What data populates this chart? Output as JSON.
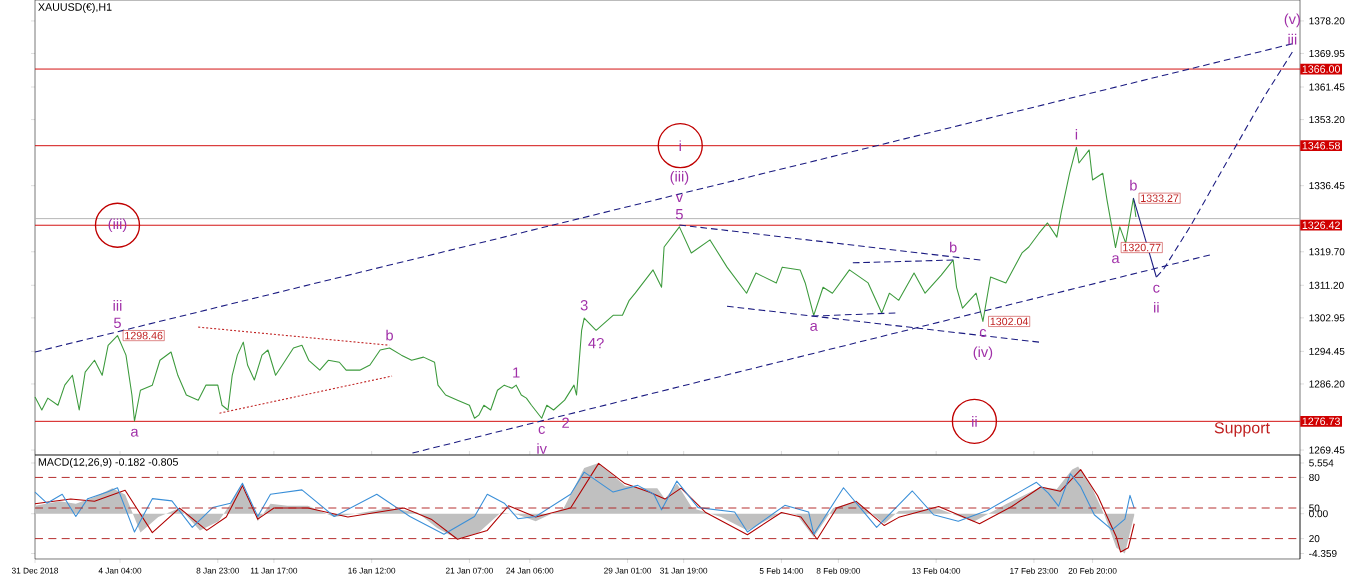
{
  "chart_data": [
    {
      "type": "line",
      "title": "XAUUSD(€),H1",
      "xlim": [
        "2018-12-31T00:00",
        "2019-03-03T00:00"
      ],
      "ylim": [
        1268.2,
        1383.5
      ],
      "tick_labels": "y",
      "yticks": [
        {
          "value": 1378.2,
          "label": "1378.20"
        },
        1369.95,
        1361.45,
        {
          "value": 1353.2,
          "label": "1353.20"
        },
        1336.45,
        {
          "value": 1319.7,
          "label": "1319.70"
        },
        {
          "value": 1311.2,
          "label": "1311.20"
        },
        1302.95,
        1294.45,
        {
          "value": 1286.2,
          "label": "1286.20"
        },
        1269.45
      ],
      "series": [
        {
          "color": "#3c9a3c",
          "x": [
            "2018-12-31T00:00",
            "2018-12-31T08:00",
            "2018-12-31T15:00",
            "2019-01-01T03:00",
            "2019-01-01T11:00",
            "2019-01-01T20:00",
            "2019-01-02T04:00",
            "2019-01-02T11:00",
            "2019-01-02T22:00",
            "2019-01-03T07:00",
            "2019-01-03T14:00",
            "2019-01-04T01:00",
            "2019-01-04T11:00",
            "2019-01-04T18:00",
            "2019-01-04T21:00",
            "2019-01-05T04:00",
            "2019-01-05T18:00",
            "2019-01-06T03:00",
            "2019-01-06T16:00",
            "2019-01-07T00:00",
            "2019-01-07T10:00",
            "2019-01-08T00:00",
            "2019-01-08T09:00",
            "2019-01-08T23:00",
            "2019-01-09T04:00",
            "2019-01-09T11:00",
            "2019-01-09T16:00",
            "2019-01-09T22:00",
            "2019-01-10T05:00",
            "2019-01-10T10:00",
            "2019-01-10T18:00",
            "2019-01-11T03:00",
            "2019-01-11T10:00",
            "2019-01-11T19:00",
            "2019-01-12T03:00",
            "2019-01-12T16:00",
            "2019-01-13T02:00",
            "2019-01-13T10:00",
            "2019-01-13T23:00",
            "2019-01-14T09:00",
            "2019-01-14T22:00",
            "2019-01-15T06:00",
            "2019-01-15T22:00",
            "2019-01-16T10:00",
            "2019-01-16T22:00",
            "2019-01-17T09:00",
            "2019-01-17T23:00",
            "2019-01-18T11:00",
            "2019-01-19T01:00",
            "2019-01-19T14:00",
            "2019-01-19T18:00",
            "2019-01-20T03:00",
            "2019-01-20T17:00",
            "2019-01-21T07:00",
            "2019-01-21T13:00",
            "2019-01-21T18:00",
            "2019-01-22T00:00",
            "2019-01-22T08:00",
            "2019-01-22T16:00",
            "2019-01-23T00:00",
            "2019-01-23T09:00",
            "2019-01-23T14:00",
            "2019-01-23T20:00",
            "2019-01-24T02:00",
            "2019-01-24T08:00",
            "2019-01-24T20:00",
            "2019-01-25T02:00",
            "2019-01-25T10:00",
            "2019-01-25T23:00",
            "2019-01-26T10:00",
            "2019-01-26T13:00",
            "2019-01-26T19:00",
            "2019-01-26T22:00",
            "2019-01-27T12:00",
            "2019-01-27T19:00",
            "2019-01-28T08:00",
            "2019-01-28T19:00",
            "2019-01-29T03:00",
            "2019-01-29T10:00",
            "2019-01-30T07:00",
            "2019-01-30T17:00",
            "2019-01-30T20:00",
            "2019-01-31T14:00",
            "2019-02-01T04:00",
            "2019-02-02T02:00",
            "2019-02-02T22:00",
            "2019-02-03T21:00",
            "2019-02-04T08:00",
            "2019-02-05T08:00",
            "2019-02-05T15:00",
            "2019-02-06T12:00",
            "2019-02-06T18:00",
            "2019-02-07T04:00",
            "2019-02-07T15:00",
            "2019-02-08T02:00",
            "2019-02-08T22:00",
            "2019-02-09T20:00",
            "2019-02-10T12:00",
            "2019-02-10T21:00",
            "2019-02-11T08:00",
            "2019-02-12T02:00",
            "2019-02-12T15:00",
            "2019-02-13T10:00",
            "2019-02-14T00:00",
            "2019-02-14T04:00",
            "2019-02-14T11:00",
            "2019-02-15T03:00",
            "2019-02-15T11:00",
            "2019-02-15T20:00",
            "2019-02-16T14:00",
            "2019-02-17T09:00",
            "2019-02-17T17:00",
            "2019-02-18T05:00",
            "2019-02-18T15:00",
            "2019-02-19T02:00",
            "2019-02-19T07:00",
            "2019-02-19T17:00",
            "2019-02-20T01:00",
            "2019-02-20T04:00",
            "2019-02-20T16:00",
            "2019-02-20T20:00",
            "2019-02-21T08:00",
            "2019-02-21T13:00",
            "2019-02-21T23:00",
            "2019-02-22T04:00",
            "2019-02-22T11:00",
            "2019-02-22T20:00",
            "2019-02-22T23:00"
          ],
          "values": [
            1282.9,
            1279.6,
            1282.6,
            1280.8,
            1285.9,
            1288.4,
            1279.6,
            1289.2,
            1292.2,
            1288.4,
            1296.0,
            1298.46,
            1293.5,
            1283.4,
            1276.8,
            1284.6,
            1285.9,
            1292.2,
            1294.3,
            1288.4,
            1283.4,
            1282.1,
            1285.9,
            1285.9,
            1280.8,
            1279.6,
            1288.4,
            1293.5,
            1296.8,
            1291.0,
            1287.2,
            1293.5,
            1294.8,
            1288.4,
            1291.0,
            1295.3,
            1296.0,
            1292.2,
            1289.7,
            1292.2,
            1291.7,
            1289.7,
            1289.7,
            1291.0,
            1294.8,
            1295.3,
            1293.5,
            1292.2,
            1293.0,
            1291.7,
            1285.9,
            1283.4,
            1282.1,
            1280.8,
            1277.5,
            1278.3,
            1280.8,
            1279.6,
            1284.6,
            1285.9,
            1285.1,
            1285.9,
            1283.4,
            1282.6,
            1280.8,
            1277.5,
            1280.8,
            1279.6,
            1282.1,
            1285.9,
            1283.4,
            1299.8,
            1302.9,
            1299.8,
            1301.1,
            1303.6,
            1303.6,
            1307.4,
            1309.2,
            1315.1,
            1310.7,
            1320.9,
            1326.0,
            1319.4,
            1322.7,
            1315.8,
            1309.2,
            1314.3,
            1311.8,
            1315.8,
            1315.1,
            1311.8,
            1303.6,
            1310.7,
            1309.2,
            1315.1,
            1311.8,
            1304.2,
            1309.2,
            1307.4,
            1314.3,
            1309.2,
            1313.8,
            1317.6,
            1310.7,
            1305.4,
            1309.2,
            1302.04,
            1313.3,
            1311.8,
            1319.4,
            1320.9,
            1324.4,
            1327.0,
            1323.4,
            1329.5,
            1339.6,
            1346.2,
            1342.2,
            1345.5,
            1337.9,
            1339.6,
            1332.8,
            1320.77,
            1326.0,
            1321.9,
            1333.27,
            1328.5
          ],
          "value_labels": [
            null,
            null,
            null,
            null,
            null,
            null,
            null,
            null,
            null,
            null,
            null,
            "1298.46",
            null,
            null,
            null,
            null,
            null,
            null,
            null,
            null,
            null,
            null,
            null,
            null,
            null,
            null,
            null,
            null,
            null,
            null,
            null,
            null,
            null,
            null,
            null,
            null,
            null,
            null,
            null,
            null,
            null,
            null,
            null,
            null,
            null,
            null,
            null,
            null,
            null,
            null,
            null,
            null,
            null,
            null,
            null,
            null,
            null,
            null,
            null,
            null,
            null,
            null,
            null,
            null,
            null,
            null,
            null,
            null,
            null,
            null,
            null,
            null,
            null,
            null,
            null,
            null,
            null,
            null,
            null,
            null,
            null,
            null,
            null,
            null,
            null,
            null,
            null,
            null,
            null,
            null,
            null,
            null,
            null,
            null,
            null,
            null,
            null,
            null,
            null,
            null,
            null,
            null,
            null,
            null,
            null,
            null,
            null,
            "1302.04",
            null,
            null,
            null,
            null,
            null,
            null,
            null,
            null,
            null,
            null,
            null,
            null,
            null,
            null,
            null,
            "1320.77",
            null,
            null,
            "1333.27",
            null
          ]
        },
        {
          "color": "#1a1a80",
          "line_style": "dashed",
          "x": [
            "2018-12-31T00:00",
            "2019-03-02T15:00"
          ],
          "values": [
            1294.3,
            1372.4
          ]
        },
        {
          "color": "#1a1a80",
          "line_style": "dashed",
          "x": [
            "2019-01-18T12:00",
            "2019-02-26T14:00"
          ],
          "values": [
            1268.7,
            1318.9
          ]
        },
        {
          "color": "#c02020",
          "line_style": "dotted",
          "x": [
            "2019-01-08T00:00",
            "2019-01-17T09:00"
          ],
          "values": [
            1300.6,
            1296.0
          ]
        },
        {
          "color": "#c02020",
          "line_style": "dotted",
          "x": [
            "2019-01-09T01:00",
            "2019-01-17T12:00"
          ],
          "values": [
            1278.8,
            1288.2
          ]
        },
        {
          "color": "#1a1a80",
          "line_style": "dashed",
          "x": [
            "2019-01-31T14:00",
            "2019-02-15T08:00"
          ],
          "values": [
            1326.5,
            1317.6
          ]
        },
        {
          "color": "#1a1a80",
          "line_style": "dashed",
          "x": [
            "2019-02-02T22:00",
            "2019-02-18T05:00"
          ],
          "values": [
            1305.9,
            1296.8
          ]
        },
        {
          "color": "#1a1a80",
          "line_style": "dashed",
          "x": [
            "2019-02-09T02:00",
            "2019-02-14T00:00"
          ],
          "values": [
            1316.9,
            1317.6
          ]
        },
        {
          "color": "#1a1a80",
          "line_style": "dashed",
          "x": [
            "2019-02-07T02:00",
            "2019-02-11T04:00"
          ],
          "values": [
            1303.4,
            1304.2
          ]
        },
        {
          "color": "#1a1a80",
          "x": [
            "2019-02-22T20:00",
            "2019-02-23T23:00"
          ],
          "values": [
            1333.27,
            1313.3
          ]
        },
        {
          "color": "#1a1a80",
          "line_style": "dashed",
          "x": [
            "2019-02-23T23:00",
            "2019-02-24T07:00",
            "2019-02-25T16:00",
            "2019-02-27T11:00",
            "2019-03-01T07:00",
            "2019-03-02T15:00"
          ],
          "values": [
            1313.3,
            1315.1,
            1326.5,
            1342.9,
            1359.4,
            1370.3
          ]
        }
      ],
      "ref_lines": [
        {
          "axis": "y",
          "value": 1366.0,
          "label": "1366.00",
          "color": "#d00000"
        },
        {
          "axis": "y",
          "value": 1346.58,
          "label": "1346.58",
          "color": "#d00000"
        },
        {
          "axis": "y",
          "value": 1328.1,
          "color": "#b0b0b0"
        },
        {
          "axis": "y",
          "value": 1326.42,
          "label": "1326.42",
          "color": "#d00000"
        },
        {
          "axis": "y",
          "value": 1276.73,
          "label": "1276.73",
          "color": "#d00000"
        }
      ],
      "annotations": [
        {
          "text": "(iii)",
          "x": "2019-01-04T01:00",
          "y": 1326.42
        },
        {
          "text": "5",
          "x": "2019-01-04T01:00",
          "y": 1298.46
        },
        {
          "text": "iii",
          "x": "2019-01-04T01:00",
          "y": 1298.46
        },
        {
          "text": "a",
          "x": "2019-01-04T21:00",
          "y": 1276.8
        },
        {
          "text": "b",
          "x": "2019-01-17T09:00",
          "y": 1295.3
        },
        {
          "text": "1",
          "x": "2019-01-23T14:00",
          "y": 1285.9
        },
        {
          "text": "c",
          "x": "2019-01-24T20:00",
          "y": 1277.5
        },
        {
          "text": "iv",
          "x": "2019-01-24T20:00",
          "y": 1277.5
        },
        {
          "text": "2",
          "x": "2019-01-25T10:00",
          "y": 1279.6
        },
        {
          "text": "3",
          "x": "2019-01-26T22:00",
          "y": 1302.9
        },
        {
          "text": "4?",
          "x": "2019-01-27T12:00",
          "y": 1299.8
        },
        {
          "text": "i",
          "x": "2019-01-31T15:00",
          "y": 1346.58
        },
        {
          "text": "5",
          "x": "2019-01-31T14:00",
          "y": 1326.0
        },
        {
          "text": "v",
          "x": "2019-01-31T14:00",
          "y": 1326.0
        },
        {
          "text": "(iii)",
          "x": "2019-01-31T14:00",
          "y": 1326.0
        },
        {
          "text": "a",
          "x": "2019-02-07T04:00",
          "y": 1303.6
        },
        {
          "text": "b",
          "x": "2019-02-14T00:00",
          "y": 1317.6
        },
        {
          "text": "c",
          "x": "2019-02-15T11:00",
          "y": 1302.04
        },
        {
          "text": "(iv)",
          "x": "2019-02-15T11:00",
          "y": 1302.04
        },
        {
          "text": "ii",
          "x": "2019-02-15T01:00",
          "y": 1276.73
        },
        {
          "text": "i",
          "x": "2019-02-20T01:00",
          "y": 1346.2
        },
        {
          "text": "a",
          "x": "2019-02-21T23:00",
          "y": 1320.77
        },
        {
          "text": "b",
          "x": "2019-02-22T20:00",
          "y": 1333.27
        },
        {
          "text": "c",
          "x": "2019-02-23T23:00",
          "y": 1313.3
        },
        {
          "text": "ii",
          "x": "2019-02-23T23:00",
          "y": 1313.3
        },
        {
          "text": "iii",
          "x": "2019-03-02T15:00",
          "y": 1370.3
        },
        {
          "text": "(v)",
          "x": "2019-03-02T15:00",
          "y": 1370.3
        },
        "Support"
      ]
    },
    {
      "type": "line",
      "title": "MACD(12,26,9) -0.182 -0.805",
      "xlim": [
        "2018-12-31T00:00",
        "2019-03-03T00:00"
      ],
      "ylim": [
        -4.96,
        6.43
      ],
      "y2lim": [
        0,
        102
      ],
      "xticks": [
        {
          "value": "2018-12-31T00:00",
          "label": "31 Dec 2018"
        },
        {
          "value": "2019-01-04T04:00",
          "label": "4 Jan 04:00"
        },
        {
          "value": "2019-01-08T23:00",
          "label": "8 Jan 23:00"
        },
        {
          "value": "2019-01-11T17:00",
          "label": "11 Jan 17:00"
        },
        {
          "value": "2019-01-16T12:00",
          "label": "16 Jan 12:00"
        },
        {
          "value": "2019-01-21T07:00",
          "label": "21 Jan 07:00"
        },
        {
          "value": "2019-01-24T06:00",
          "label": "24 Jan 06:00"
        },
        {
          "value": "2019-01-29T01:00",
          "label": "29 Jan 01:00"
        },
        {
          "value": "2019-01-31T19:00",
          "label": "31 Jan 19:00"
        },
        {
          "value": "2019-02-05T14:00",
          "label": "5 Feb 14:00"
        },
        {
          "value": "2019-02-08T09:00",
          "label": "8 Feb 09:00"
        },
        {
          "value": "2019-02-13T04:00",
          "label": "13 Feb 04:00"
        },
        {
          "value": "2019-02-17T23:00",
          "label": "17 Feb 23:00"
        },
        {
          "value": "2019-02-20T20:00",
          "label": "20 Feb 20:00"
        }
      ],
      "yticks": [
        5.554,
        {
          "value": 0,
          "label": "0.00"
        },
        -4.359
      ],
      "y2ticks": [
        80,
        50,
        20
      ],
      "series": [
        {
          "type": "area",
          "color": "#c0c0c0",
          "x": [
            "2018-12-31T00:00",
            "2019-01-01T05:00",
            "2019-01-02T00:00",
            "2019-01-02T22:00",
            "2019-01-03T19:00",
            "2019-01-04T10:00",
            "2019-01-05T04:00",
            "2019-01-06T01:00",
            "2019-01-07T02:00",
            "2019-01-08T02:00",
            "2019-01-09T00:00",
            "2019-01-09T14:00",
            "2019-01-10T02:00",
            "2019-01-10T13:00",
            "2019-01-10T22:00",
            "2019-01-11T13:00",
            "2019-01-12T09:00",
            "2019-01-13T09:00",
            "2019-01-14T16:00",
            "2019-01-16T02:00",
            "2019-01-17T09:00",
            "2019-01-18T18:00",
            "2019-01-19T17:00",
            "2019-01-20T17:00",
            "2019-01-21T18:00",
            "2019-01-22T20:00",
            "2019-01-23T16:00",
            "2019-01-24T13:00",
            "2019-01-25T22:00",
            "2019-01-26T22:00",
            "2019-01-27T15:00",
            "2019-01-28T22:00",
            "2019-01-29T23:00",
            "2019-01-30T12:00",
            "2019-01-30T21:00",
            "2019-01-31T11:00",
            "2019-02-01T05:00",
            "2019-02-02T15:00",
            "2019-02-03T22:00",
            "2019-02-05T14:00",
            "2019-02-06T08:00",
            "2019-02-07T04:00",
            "2019-02-08T03:00",
            "2019-02-09T06:00",
            "2019-02-10T15:00",
            "2019-02-11T08:00",
            "2019-02-13T07:00",
            "2019-02-15T00:00",
            "2019-02-16T14:00",
            "2019-02-18T07:00",
            "2019-02-19T02:00",
            "2019-02-19T20:00",
            "2019-02-20T03:00",
            "2019-02-20T20:00",
            "2019-02-21T10:00",
            "2019-02-22T00:00",
            "2019-02-22T10:00",
            "2019-02-22T21:00"
          ],
          "values": [
            0.87,
            1.36,
            1.1,
            1.84,
            2.8,
            2.1,
            -2.07,
            -0.36,
            0.62,
            -1.83,
            -0.84,
            1.1,
            3.07,
            1.6,
            -0.84,
            1.1,
            0.87,
            0.87,
            -0.36,
            0.13,
            0.62,
            0.13,
            -1.57,
            -2.8,
            -2.07,
            0.13,
            -0.11,
            -0.84,
            0.62,
            5.0,
            5.554,
            3.07,
            2.8,
            2.8,
            1.6,
            3.3,
            0.62,
            -0.36,
            -1.83,
            0.13,
            -0.11,
            -2.55,
            0.62,
            1.36,
            -1.1,
            0.31,
            0.55,
            -0.88,
            1.03,
            2.92,
            2.7,
            4.83,
            5.17,
            2.7,
            -0.16,
            -3.73,
            -4.359,
            -0.16
          ]
        },
        {
          "color": "#3a8fd8",
          "axis": "y2",
          "x": [
            "2018-12-31T00:00",
            "2018-12-31T14:00",
            "2019-01-01T08:00",
            "2019-01-02T00:00",
            "2019-01-02T14:00",
            "2019-01-03T13:00",
            "2019-01-04T01:00",
            "2019-01-04T21:00",
            "2019-01-05T18:00",
            "2019-01-06T17:00",
            "2019-01-07T17:00",
            "2019-01-08T17:00",
            "2019-01-09T14:00",
            "2019-01-10T04:00",
            "2019-01-10T22:00",
            "2019-01-11T13:00",
            "2019-01-13T02:00",
            "2019-01-14T16:00",
            "2019-01-16T18:00",
            "2019-01-18T09:00",
            "2019-01-20T01:00",
            "2019-01-21T13:00",
            "2019-01-22T04:00",
            "2019-01-23T00:00",
            "2019-01-23T16:00",
            "2019-01-24T13:00",
            "2019-01-26T06:00",
            "2019-01-26T22:00",
            "2019-01-28T08:00",
            "2019-01-29T13:00",
            "2019-01-30T08:00",
            "2019-01-30T17:00",
            "2019-01-31T11:00",
            "2019-02-01T12:00",
            "2019-02-03T07:00",
            "2019-02-03T22:00",
            "2019-02-05T18:00",
            "2019-02-06T22:00",
            "2019-02-07T04:00",
            "2019-02-08T15:00",
            "2019-02-10T06:00",
            "2019-02-12T00:00",
            "2019-02-13T01:00",
            "2019-02-14T06:00",
            "2019-02-15T16:00",
            "2019-02-18T02:00",
            "2019-02-18T16:00",
            "2019-02-19T04:00",
            "2019-02-19T18:00",
            "2019-02-20T06:00",
            "2019-02-20T22:00",
            "2019-02-21T19:00",
            "2019-02-22T10:00",
            "2019-02-22T16:00",
            "2019-02-22T21:00"
          ],
          "values": [
            65.6,
            54.7,
            63.5,
            41.7,
            59.2,
            65.6,
            69.9,
            26.5,
            59.2,
            57.0,
            31.0,
            50.4,
            54.7,
            74.3,
            41.7,
            63.5,
            67.8,
            41.7,
            63.5,
            41.7,
            24.3,
            41.7,
            63.5,
            54.7,
            39.5,
            41.7,
            63.5,
            85.2,
            65.6,
            72.2,
            63.5,
            48.2,
            76.4,
            50.4,
            46.1,
            26.5,
            52.6,
            46.1,
            24.3,
            69.9,
            31.0,
            66.7,
            43.4,
            37.1,
            47.6,
            75.2,
            64.6,
            51.9,
            83.6,
            70.9,
            43.4,
            28.6,
            39.1,
            62.4,
            49.8
          ]
        },
        {
          "color": "#b00000",
          "x": [
            "2018-12-31T00:00",
            "2019-01-01T18:00",
            "2019-01-02T22:00",
            "2019-01-04T10:00",
            "2019-01-05T18:00",
            "2019-01-07T02:00",
            "2019-01-08T10:00",
            "2019-01-09T09:00",
            "2019-01-10T04:00",
            "2019-01-10T22:00",
            "2019-01-11T17:00",
            "2019-01-13T09:00",
            "2019-01-15T08:00",
            "2019-01-18T02:00",
            "2019-01-19T10:00",
            "2019-01-20T17:00",
            "2019-01-22T04:00",
            "2019-01-23T05:00",
            "2019-01-24T13:00",
            "2019-01-26T06:00",
            "2019-01-27T15:00",
            "2019-01-28T22:00",
            "2019-01-30T03:00",
            "2019-01-30T21:00",
            "2019-01-31T16:00",
            "2019-02-01T21:00",
            "2019-02-03T22:00",
            "2019-02-05T14:00",
            "2019-02-06T13:00",
            "2019-02-07T08:00",
            "2019-02-08T07:00",
            "2019-02-09T06:00",
            "2019-02-10T15:00",
            "2019-02-11T08:00",
            "2019-02-13T07:00",
            "2019-02-15T07:00",
            "2019-02-16T21:00",
            "2019-02-18T07:00",
            "2019-02-19T06:00",
            "2019-02-20T06:00",
            "2019-02-21T02:00",
            "2019-02-22T00:00",
            "2019-02-22T05:00",
            "2019-02-22T14:00",
            "2019-02-22T21:00"
          ],
          "values": [
            1.1,
            1.6,
            1.36,
            2.57,
            -2.07,
            0.62,
            -1.83,
            -0.36,
            3.07,
            -0.6,
            0.62,
            0.62,
            -0.36,
            0.62,
            -0.6,
            -2.8,
            -1.83,
            0.87,
            -0.36,
            0.62,
            5.51,
            3.3,
            2.35,
            1.6,
            2.8,
            0.13,
            -2.3,
            0.13,
            -0.36,
            -2.8,
            0.62,
            1.36,
            -1.3,
            -0.4,
            0.79,
            -1.1,
            0.79,
            2.92,
            2.45,
            4.83,
            1.97,
            -2.55,
            -4.2,
            -3.73,
            -1.1
          ]
        }
      ],
      "ref_lines": [
        {
          "axis": "y2",
          "value": 80,
          "color": "#b02020",
          "line_style": "dashed"
        },
        {
          "axis": "y2",
          "value": 50,
          "color": "#b02020",
          "line_style": "dashed"
        },
        {
          "axis": "y2",
          "value": 20,
          "color": "#b02020",
          "line_style": "dashed"
        }
      ]
    }
  ]
}
